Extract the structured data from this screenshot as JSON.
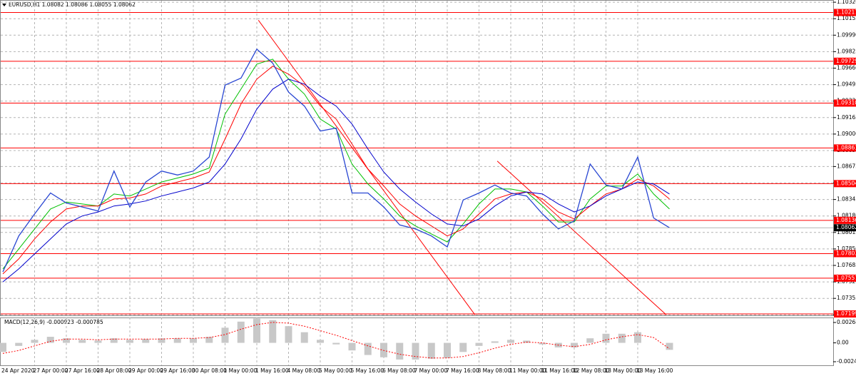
{
  "chart_data": [
    {
      "type": "line",
      "title": "EURUSD,H1  1.08082 1.08086 1.08055 1.08062",
      "categories": [
        "24 Apr 2020",
        null,
        "27 Apr 00:00",
        null,
        "27 Apr 16:00",
        null,
        "28 Apr 08:00",
        null,
        "29 Apr 00:00",
        null,
        "29 Apr 16:00",
        null,
        "30 Apr 08:00",
        null,
        "1 May 00:00",
        null,
        "1 May 16:00",
        null,
        "4 May 08:00",
        null,
        "5 May 00:00",
        null,
        "5 May 16:00",
        null,
        "6 May 08:00",
        null,
        "7 May 00:00",
        null,
        "7 May 16:00",
        null,
        "8 May 08:00",
        null,
        "11 May 00:00",
        null,
        "11 May 16:00",
        null,
        "12 May 08:00",
        null,
        "13 May 00:00",
        null,
        "13 May 16:00",
        null,
        null
      ],
      "series": [
        {
          "color": "#2846d2",
          "values": [
            1.0762,
            1.0798,
            1.082,
            1.0841,
            1.0831,
            1.0827,
            1.0823,
            1.0863,
            1.0827,
            1.0852,
            1.0863,
            1.0859,
            1.0863,
            1.0877,
            1.0949,
            1.0956,
            1.0985,
            1.0971,
            1.0942,
            1.0928,
            1.0903,
            1.0906,
            1.0841,
            1.0841,
            1.0827,
            1.0809,
            1.0805,
            1.0798,
            1.0787,
            1.0834,
            1.0841,
            1.0849,
            1.0841,
            1.0838,
            1.082,
            1.0805,
            1.0813,
            1.087,
            1.0849,
            1.0845,
            1.0877,
            1.0816,
            1.08062
          ]
        },
        {
          "color": "#00c000",
          "values": [
            1.0765,
            1.0785,
            1.0805,
            1.0825,
            1.0832,
            1.083,
            1.0828,
            1.084,
            1.0838,
            1.0845,
            1.0852,
            1.0856,
            1.086,
            1.0866,
            1.092,
            1.0945,
            1.097,
            1.0975,
            1.0955,
            1.094,
            1.0915,
            1.0905,
            1.087,
            1.085,
            1.0835,
            1.0818,
            1.0808,
            1.08,
            1.0792,
            1.081,
            1.083,
            1.0845,
            1.0845,
            1.0842,
            1.0828,
            1.0812,
            1.0812,
            1.0835,
            1.0848,
            1.0848,
            1.086,
            1.084,
            1.0825
          ]
        },
        {
          "color": "#ff0000",
          "values": [
            1.076,
            1.0775,
            1.0795,
            1.0812,
            1.0825,
            1.0828,
            1.0828,
            1.0835,
            1.0836,
            1.084,
            1.0848,
            1.0852,
            1.0856,
            1.0862,
            1.0895,
            1.093,
            1.0955,
            1.0968,
            1.096,
            1.0948,
            1.0928,
            1.0915,
            1.089,
            1.0865,
            1.0848,
            1.083,
            1.0818,
            1.0808,
            1.0798,
            1.0805,
            1.082,
            1.0835,
            1.084,
            1.0842,
            1.0835,
            1.0822,
            1.0815,
            1.0828,
            1.084,
            1.0845,
            1.0855,
            1.0848,
            1.0835
          ]
        },
        {
          "color": "#0000cc",
          "values": [
            1.0752,
            1.0765,
            1.078,
            1.0795,
            1.081,
            1.0818,
            1.0822,
            1.0828,
            1.083,
            1.0833,
            1.0838,
            1.0842,
            1.0846,
            1.0852,
            1.087,
            1.0895,
            1.0925,
            1.0945,
            1.0955,
            1.095,
            1.0938,
            1.0928,
            1.091,
            1.0885,
            1.0862,
            1.0845,
            1.0832,
            1.082,
            1.081,
            1.0808,
            1.0815,
            1.0828,
            1.0838,
            1.0842,
            1.084,
            1.083,
            1.0822,
            1.0828,
            1.0838,
            1.0845,
            1.0852,
            1.085,
            1.084
          ]
        }
      ],
      "ylim": [
        1.07185,
        1.10335
      ],
      "yticks": [
        {
          "value": 1.1032,
          "label": "1.10320"
        },
        1.10155,
        {
          "value": 1.0999,
          "label": "1.09990"
        },
        1.09825,
        {
          "value": 1.0966,
          "label": "1.09660"
        },
        1.09495,
        {
          "value": 1.0933,
          "label": "1.09330"
        },
        1.09165,
        {
          "value": 1.09,
          "label": "1.09000"
        },
        1.08835,
        1.08675,
        {
          "value": 1.0851,
          "label": "1.08510"
        },
        1.08345,
        {
          "value": 1.0818,
          "label": "1.08180"
        },
        1.08015,
        {
          "value": 1.0785,
          "label": "1.07850"
        },
        1.07685,
        {
          "value": 1.0752,
          "label": "1.07520"
        },
        1.07355,
        {
          "value": 1.0719,
          "label": "1.07190"
        }
      ],
      "grid": true,
      "levels": [
        1.10217,
        1.09729,
        {
          "value": 1.0931,
          "label": "1.09310"
        },
        1.08861,
        1.08504,
        1.08136,
        1.07803,
        1.07557,
        1.07199
      ],
      "level_color": "#ff0000",
      "trendlines": [
        {
          "x": [
            16.1,
            29.75
          ],
          "y": [
            1.1014,
            1.0719
          ]
        },
        {
          "x": [
            31.15,
            41.8
          ],
          "y": [
            1.0873,
            1.0719
          ]
        }
      ],
      "trend_color": "#ff0000"
    },
    {
      "type": "bar",
      "title": "MACD(12,26,9) -0.000923 -0.000785",
      "values": [
        -0.0012,
        -0.0004,
        0.0004,
        0.0008,
        0.0006,
        0.0004,
        0.0003,
        0.0006,
        0.0004,
        0.0005,
        0.0006,
        0.0006,
        0.0006,
        0.0008,
        0.002,
        0.0028,
        0.0032,
        0.003,
        0.0022,
        0.0014,
        0.0004,
        -0.0002,
        -0.001,
        -0.0016,
        -0.0019,
        -0.0022,
        -0.0022,
        -0.0021,
        -0.002,
        -0.0012,
        -0.0004,
        0.0002,
        0.0004,
        0.0003,
        -0.0002,
        -0.0006,
        -0.0006,
        0.0006,
        0.0012,
        0.0012,
        0.0014,
        0,
        -0.000923
      ],
      "color": "#c8c8c8",
      "signal": {
        "color": "#ff0000",
        "values": [
          -0.0014,
          -0.001,
          -0.0004,
          0.0002,
          0.0005,
          0.0005,
          0.0004,
          0.0005,
          0.0005,
          0.0005,
          0.0005,
          0.0006,
          0.0006,
          0.0007,
          0.0011,
          0.0018,
          0.0024,
          0.0027,
          0.0026,
          0.0022,
          0.0016,
          0.001,
          0.0003,
          -0.0004,
          -0.001,
          -0.0015,
          -0.0018,
          -0.002,
          -0.002,
          -0.0018,
          -0.0013,
          -0.0007,
          -0.0002,
          0.0001,
          0,
          -0.0003,
          -0.0005,
          -0.0002,
          0.0004,
          0.0008,
          0.0011,
          0.0007,
          -0.000785
        ]
      },
      "ylim": [
        -0.00296,
        0.00325
      ],
      "yticks": [
        0.002686,
        {
          "value": 0,
          "label": "0.00"
        },
        -0.002488
      ]
    }
  ]
}
